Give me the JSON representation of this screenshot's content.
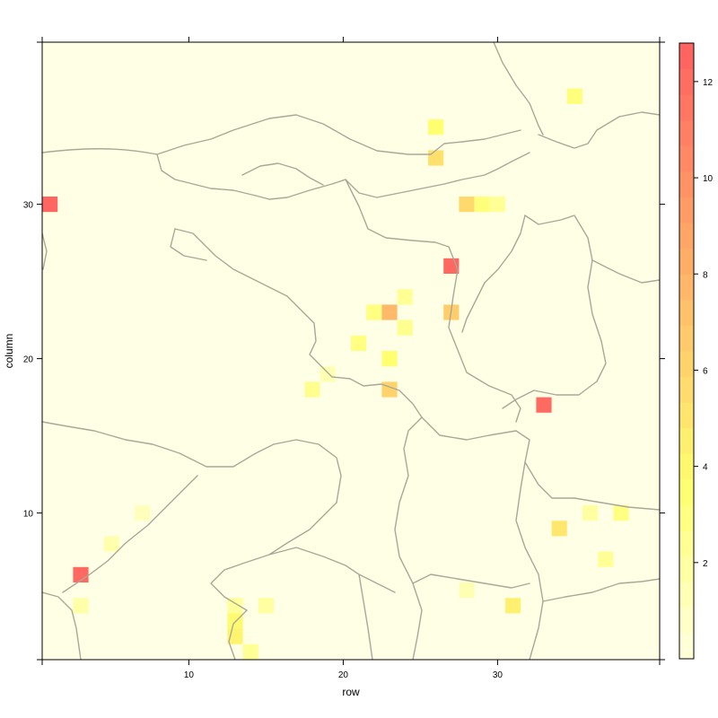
{
  "chart_data": {
    "type": "heatmap",
    "title": "",
    "xlabel": "row",
    "ylabel": "column",
    "xlim": [
      0.5,
      40.5
    ],
    "ylim": [
      0.5,
      40.5
    ],
    "x_ticks": [
      10,
      20,
      30
    ],
    "y_ticks": [
      10,
      20,
      30
    ],
    "colorbar": {
      "range": [
        0,
        12.8
      ],
      "ticks": [
        2,
        4,
        6,
        8,
        10,
        12
      ],
      "low_color": "#ffffe0",
      "mid_color": "#ffff70",
      "high_color": "#ff6060"
    },
    "background_color": "#ffffe5",
    "cells": [
      {
        "x": 1,
        "y": 30,
        "value": 12.5
      },
      {
        "x": 3,
        "y": 6,
        "value": 12.3
      },
      {
        "x": 3,
        "y": 4,
        "value": 1.8
      },
      {
        "x": 5,
        "y": 8,
        "value": 1.6
      },
      {
        "x": 7,
        "y": 10,
        "value": 1.2
      },
      {
        "x": 13,
        "y": 4,
        "value": 2.2
      },
      {
        "x": 13,
        "y": 3,
        "value": 3.8
      },
      {
        "x": 13,
        "y": 2,
        "value": 4.2
      },
      {
        "x": 14,
        "y": 1,
        "value": 2.4
      },
      {
        "x": 15,
        "y": 4,
        "value": 2.0
      },
      {
        "x": 18,
        "y": 18,
        "value": 2.6
      },
      {
        "x": 19,
        "y": 19,
        "value": 1.4
      },
      {
        "x": 21,
        "y": 21,
        "value": 3.0
      },
      {
        "x": 22,
        "y": 23,
        "value": 3.0
      },
      {
        "x": 23,
        "y": 23,
        "value": 7.6
      },
      {
        "x": 23,
        "y": 20,
        "value": 3.6
      },
      {
        "x": 23,
        "y": 18,
        "value": 6.2
      },
      {
        "x": 24,
        "y": 24,
        "value": 2.4
      },
      {
        "x": 24,
        "y": 22,
        "value": 2.6
      },
      {
        "x": 26,
        "y": 35,
        "value": 3.6
      },
      {
        "x": 26,
        "y": 33,
        "value": 5.4
      },
      {
        "x": 27,
        "y": 26,
        "value": 12.4
      },
      {
        "x": 27,
        "y": 23,
        "value": 6.4
      },
      {
        "x": 28,
        "y": 30,
        "value": 5.8
      },
      {
        "x": 28,
        "y": 5,
        "value": 1.4
      },
      {
        "x": 29,
        "y": 30,
        "value": 3.2
      },
      {
        "x": 30,
        "y": 30,
        "value": 2.4
      },
      {
        "x": 31,
        "y": 4,
        "value": 4.4
      },
      {
        "x": 33,
        "y": 17,
        "value": 12.2
      },
      {
        "x": 34,
        "y": 9,
        "value": 5.0
      },
      {
        "x": 35,
        "y": 37,
        "value": 3.2
      },
      {
        "x": 36,
        "y": 10,
        "value": 2.0
      },
      {
        "x": 37,
        "y": 7,
        "value": 2.4
      },
      {
        "x": 38,
        "y": 10,
        "value": 3.0
      }
    ]
  }
}
